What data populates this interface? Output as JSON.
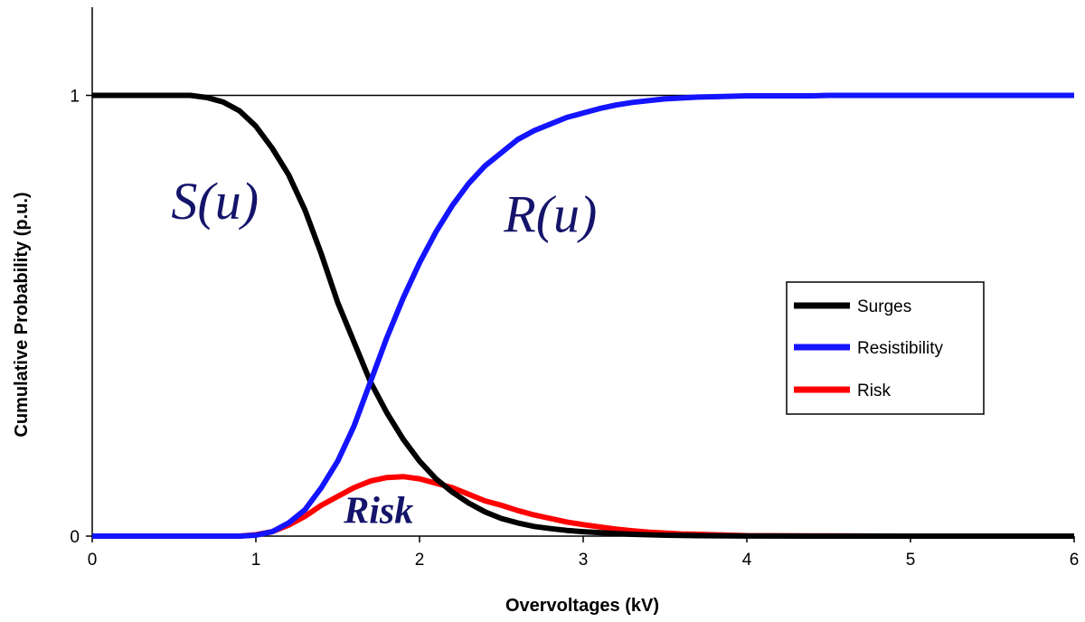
{
  "chart_data": {
    "type": "line",
    "title": "",
    "xlabel": "Overvoltages (kV)",
    "ylabel": "Cumulative Probability (p.u.)",
    "xlim": [
      0,
      6
    ],
    "ylim": [
      0,
      1.2
    ],
    "x_ticks": [
      "0",
      "1",
      "2",
      "3",
      "4",
      "5",
      "6"
    ],
    "y_ticks": [
      "0",
      "1"
    ],
    "reference_line_y": 1,
    "grid": false,
    "legend_position": "right",
    "annotations": [
      {
        "text": "S(u)",
        "x": 0.75,
        "y": 0.72,
        "style": "italic",
        "size": "large"
      },
      {
        "text": "R(u)",
        "x": 2.8,
        "y": 0.69,
        "style": "italic",
        "size": "large"
      },
      {
        "text": "Risk",
        "x": 1.75,
        "y": 0.03,
        "style": "bold-italic",
        "size": "medium"
      }
    ],
    "colors": {
      "Surges": "#000000",
      "Resistibility": "#1414ff",
      "Risk": "#ff0000",
      "annotation": "#14146b"
    },
    "series": [
      {
        "name": "Surges",
        "x": [
          0,
          0.1,
          0.2,
          0.3,
          0.4,
          0.5,
          0.6,
          0.7,
          0.8,
          0.9,
          1.0,
          1.1,
          1.2,
          1.3,
          1.4,
          1.5,
          1.6,
          1.7,
          1.8,
          1.9,
          2.0,
          2.1,
          2.2,
          2.3,
          2.4,
          2.5,
          2.6,
          2.7,
          2.8,
          2.9,
          3.0,
          3.1,
          3.2,
          3.3,
          3.4,
          3.5,
          3.6,
          3.7,
          3.8,
          3.9,
          4.0,
          4.2,
          4.4,
          4.6,
          4.8,
          5.0,
          5.5,
          6.0
        ],
        "values": [
          1,
          1,
          1,
          1,
          1,
          1,
          1,
          0.995,
          0.985,
          0.965,
          0.93,
          0.88,
          0.82,
          0.74,
          0.64,
          0.53,
          0.44,
          0.35,
          0.28,
          0.22,
          0.17,
          0.13,
          0.1,
          0.075,
          0.055,
          0.04,
          0.03,
          0.022,
          0.017,
          0.013,
          0.01,
          0.008,
          0.006,
          0.004,
          0.003,
          0.002,
          0.0015,
          0.001,
          0.0008,
          0.0005,
          0.0003,
          0.0002,
          0.0001,
          0,
          0,
          0,
          0,
          0
        ]
      },
      {
        "name": "Resistibility",
        "x": [
          0,
          0.5,
          0.9,
          1.0,
          1.1,
          1.2,
          1.3,
          1.4,
          1.5,
          1.6,
          1.7,
          1.8,
          1.9,
          2.0,
          2.1,
          2.2,
          2.3,
          2.4,
          2.5,
          2.6,
          2.7,
          2.8,
          2.9,
          3.0,
          3.1,
          3.2,
          3.3,
          3.4,
          3.5,
          3.6,
          3.7,
          3.8,
          3.9,
          4.0,
          4.2,
          4.4,
          4.5,
          5.0,
          5.5,
          6.0
        ],
        "values": [
          0,
          0,
          0,
          0.002,
          0.01,
          0.03,
          0.06,
          0.11,
          0.17,
          0.25,
          0.35,
          0.45,
          0.54,
          0.62,
          0.69,
          0.75,
          0.8,
          0.84,
          0.87,
          0.9,
          0.92,
          0.935,
          0.95,
          0.96,
          0.97,
          0.978,
          0.984,
          0.988,
          0.992,
          0.994,
          0.996,
          0.997,
          0.998,
          0.999,
          0.999,
          0.999,
          1,
          1,
          1,
          1
        ]
      },
      {
        "name": "Risk",
        "x": [
          0,
          0.5,
          0.9,
          1.0,
          1.1,
          1.2,
          1.3,
          1.4,
          1.5,
          1.6,
          1.7,
          1.8,
          1.9,
          2.0,
          2.1,
          2.2,
          2.3,
          2.4,
          2.5,
          2.6,
          2.7,
          2.8,
          2.9,
          3.0,
          3.1,
          3.2,
          3.3,
          3.4,
          3.5,
          3.6,
          3.7,
          3.8,
          3.9,
          4.0,
          4.5,
          5.0,
          5.5,
          6.0
        ],
        "values": [
          0,
          0,
          0,
          0.003,
          0.01,
          0.025,
          0.045,
          0.07,
          0.09,
          0.11,
          0.125,
          0.133,
          0.135,
          0.13,
          0.12,
          0.11,
          0.095,
          0.08,
          0.07,
          0.058,
          0.048,
          0.04,
          0.032,
          0.026,
          0.021,
          0.016,
          0.012,
          0.009,
          0.007,
          0.005,
          0.004,
          0.003,
          0.002,
          0.001,
          0.0005,
          0,
          0,
          0
        ]
      }
    ]
  }
}
